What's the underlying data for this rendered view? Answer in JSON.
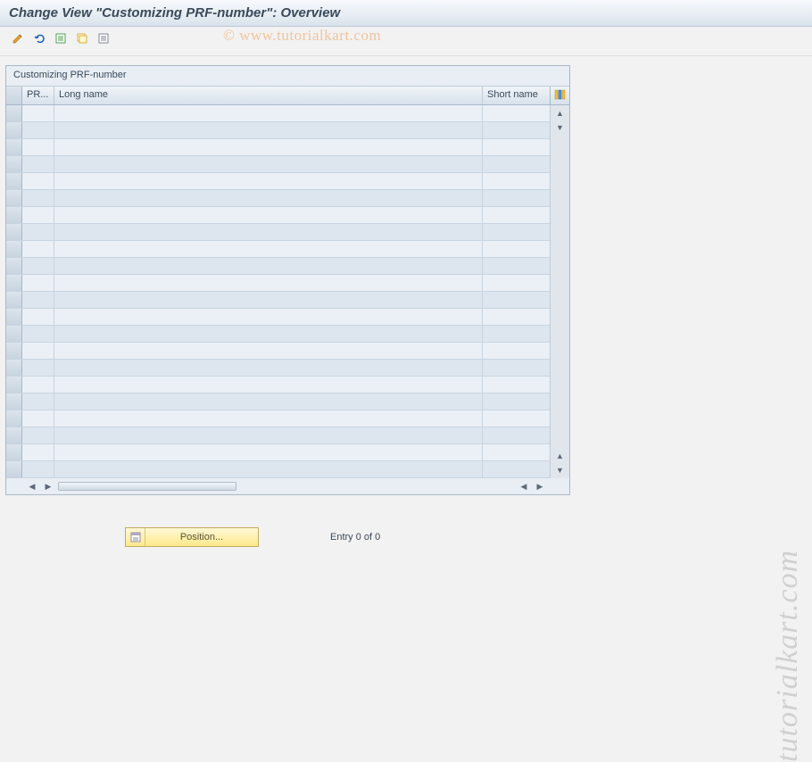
{
  "header": {
    "title": "Change View \"Customizing PRF-number\": Overview"
  },
  "toolbar": {
    "buttons": [
      {
        "name": "change-button",
        "icon": "pencil"
      },
      {
        "name": "undo-button",
        "icon": "undo"
      },
      {
        "name": "new-entries-button",
        "icon": "new-entries"
      },
      {
        "name": "copy-button",
        "icon": "copy"
      },
      {
        "name": "delete-button",
        "icon": "delete"
      }
    ]
  },
  "panel": {
    "title": "Customizing PRF-number",
    "columns": {
      "pr": "PR...",
      "long": "Long name",
      "short": "Short name"
    },
    "row_count": 22,
    "rows": [],
    "colors": {
      "panel_bg": "#e8eef4",
      "panel_border": "#a8b8c8",
      "row_odd": "#eaf0f6",
      "row_even": "#dde6ef",
      "header_grad_top": "#f0f4f8",
      "header_grad_bottom": "#d8e2ec"
    }
  },
  "footer": {
    "position_label": "Position...",
    "entry_text": "Entry 0 of 0"
  },
  "watermark": {
    "line1": "©   www.tutorialkart.com",
    "side": "tutorialkart.com"
  }
}
